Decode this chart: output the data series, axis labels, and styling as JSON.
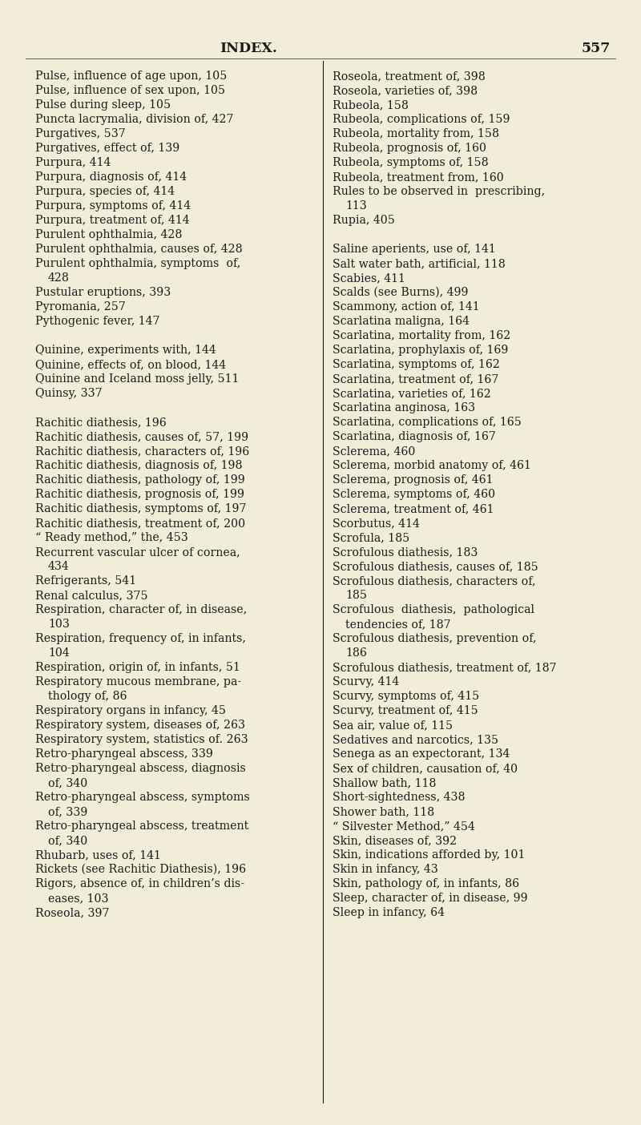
{
  "bg_color": "#f2edd8",
  "title": "INDEX.",
  "page_num": "557",
  "title_fontsize": 12.5,
  "text_fontsize": 10.2,
  "left_col": [
    "Pulse, influence of age upon, 105",
    "Pulse, influence of sex upon, 105",
    "Pulse during sleep, 105",
    "Puncta lacrymalia, division of, 427",
    "Purgatives, 537",
    "Purgatives, effect of, 139",
    "Purpura, 414",
    "Purpura, diagnosis of, 414",
    "Purpura, species of, 414",
    "Purpura, symptoms of, 414",
    "Purpura, treatment of, 414",
    "Purulent ophthalmia, 428",
    "Purulent ophthalmia, causes of, 428",
    "Purulent ophthalmia, symptoms  of,",
    "    428",
    "Pustular eruptions, 393",
    "Pyromania, 257",
    "Pythogenic fever, 147",
    "",
    "Quinine, experiments with, 144",
    "Quinine, effects of, on blood, 144",
    "Quinine and Iceland moss jelly, 511",
    "Quinsy, 337",
    "",
    "Rachitic diathesis, 196",
    "Rachitic diathesis, causes of, 57, 199",
    "Rachitic diathesis, characters of, 196",
    "Rachitic diathesis, diagnosis of, 198",
    "Rachitic diathesis, pathology of, 199",
    "Rachitic diathesis, prognosis of, 199",
    "Rachitic diathesis, symptoms of, 197",
    "Rachitic diathesis, treatment of, 200",
    "“ Ready method,” the, 453",
    "Recurrent vascular ulcer of cornea,",
    "    434",
    "Refrigerants, 541",
    "Renal calculus, 375",
    "Respiration, character of, in disease,",
    "    103",
    "Respiration, frequency of, in infants,",
    "    104",
    "Respiration, origin of, in infants, 51",
    "Respiratory mucous membrane, pa-",
    "    thology of, 86",
    "Respiratory organs in infancy, 45",
    "Respiratory system, diseases of, 263",
    "Respiratory system, statistics of. 263",
    "Retro-pharyngeal abscess, 339",
    "Retro-pharyngeal abscess, diagnosis",
    "    of, 340",
    "Retro-pharyngeal abscess, symptoms",
    "    of, 339",
    "Retro-pharyngeal abscess, treatment",
    "    of, 340",
    "Rhubarb, uses of, 141",
    "Rickets (see Rachitic Diathesis), 196",
    "Rigors, absence of, in children’s dis-",
    "    eases, 103",
    "Roseola, 397"
  ],
  "right_col": [
    "Roseola, treatment of, 398",
    "Roseola, varieties of, 398",
    "Rubeola, 158",
    "Rubeola, complications of, 159",
    "Rubeola, mortality from, 158",
    "Rubeola, prognosis of, 160",
    "Rubeola, symptoms of, 158",
    "Rubeola, treatment from, 160",
    "Rules to be observed in  prescribing,",
    "    113",
    "Rupia, 405",
    "",
    "Saline aperients, use of, 141",
    "Salt water bath, artificial, 118",
    "Scabies, 411",
    "Scalds (see Burns), 499",
    "Scammony, action of, 141",
    "Scarlatina maligna, 164",
    "Scarlatina, mortality from, 162",
    "Scarlatina, prophylaxis of, 169",
    "Scarlatina, symptoms of, 162",
    "Scarlatina, treatment of, 167",
    "Scarlatina, varieties of, 162",
    "Scarlatina anginosa, 163",
    "Scarlatina, complications of, 165",
    "Scarlatina, diagnosis of, 167",
    "Sclerema, 460",
    "Sclerema, morbid anatomy of, 461",
    "Sclerema, prognosis of, 461",
    "Sclerema, symptoms of, 460",
    "Sclerema, treatment of, 461",
    "Scorbutus, 414",
    "Scrofula, 185",
    "Scrofulous diathesis, 183",
    "Scrofulous diathesis, causes of, 185",
    "Scrofulous diathesis, characters of,",
    "    185",
    "Scrofulous  diathesis,  pathological",
    "    tendencies of, 187",
    "Scrofulous diathesis, prevention of,",
    "    186",
    "Scrofulous diathesis, treatment of, 187",
    "Scurvy, 414",
    "Scurvy, symptoms of, 415",
    "Scurvy, treatment of, 415",
    "Sea air, value of, 115",
    "Sedatives and narcotics, 135",
    "Senega as an expectorant, 134",
    "Sex of children, causation of, 40",
    "Shallow bath, 118",
    "Short-sightedness, 438",
    "Shower bath, 118",
    "“ Silvester Method,” 454",
    "Skin, diseases of, 392",
    "Skin, indications afforded by, 101",
    "Skin in infancy, 43",
    "Skin, pathology of, in infants, 86",
    "Sleep, character of, in disease, 99",
    "Sleep in infancy, 64"
  ]
}
